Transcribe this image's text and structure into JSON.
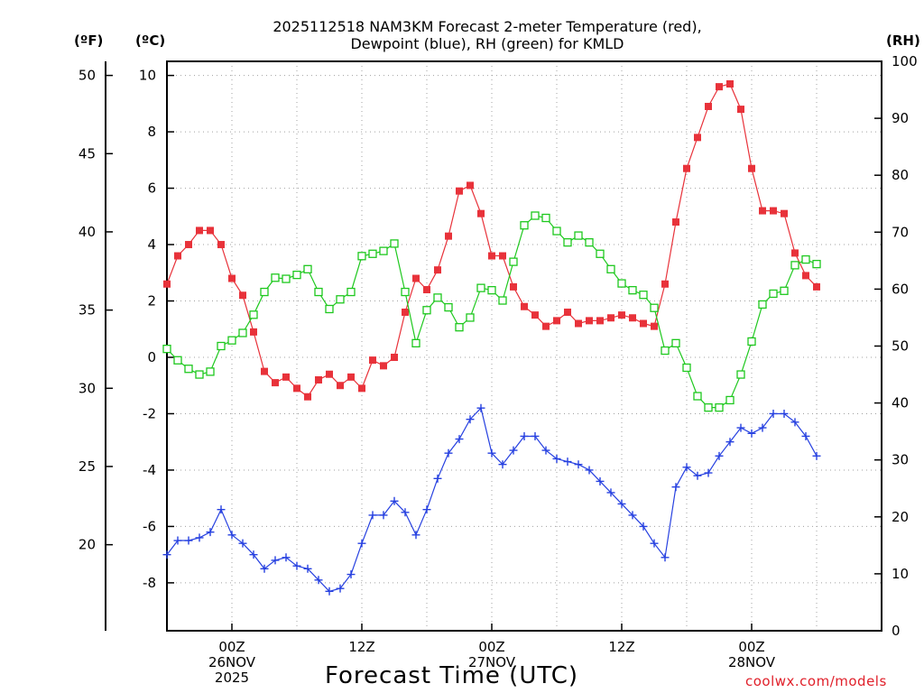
{
  "chart_data": {
    "type": "line",
    "title": "2025112518 NAM3KM Forecast 2-meter Temperature (red),",
    "subtitle": "Dewpoint (blue), RH (green) for KMLD",
    "xlabel": "Forecast Time (UTC)",
    "units": {
      "fahrenheit": "(ºF)",
      "celsius": "(ºC)",
      "rh": "(RH)"
    },
    "credit": "coolwx.com/models",
    "x_hours": [
      -6,
      -5,
      -4,
      -3,
      -2,
      -1,
      0,
      1,
      2,
      3,
      4,
      5,
      6,
      7,
      8,
      9,
      10,
      11,
      12,
      13,
      14,
      15,
      16,
      17,
      18,
      19,
      20,
      21,
      22,
      23,
      24,
      25,
      26,
      27,
      28,
      29,
      30,
      31,
      32,
      33,
      34,
      35,
      36,
      37,
      38,
      39,
      40,
      41,
      42,
      43,
      44,
      45,
      46,
      47,
      48,
      49,
      50,
      51,
      52,
      53,
      54,
      55,
      56,
      57,
      58,
      59,
      60
    ],
    "x_range": [
      -6,
      60
    ],
    "c_range": [
      -9.7,
      10.5
    ],
    "f_range": [
      14.5,
      50.9
    ],
    "rh_range": [
      0,
      100
    ],
    "c_ticks": [
      10,
      8,
      6,
      4,
      2,
      0,
      -2,
      -4,
      -6,
      -8
    ],
    "f_ticks": [
      50,
      45,
      40,
      35,
      30,
      25,
      20
    ],
    "rh_ticks": [
      100,
      90,
      80,
      70,
      60,
      50,
      40,
      30,
      20,
      10,
      0
    ],
    "x_ticks": [
      {
        "hour": 0,
        "labels": [
          "00Z",
          "26NOV",
          "2025"
        ]
      },
      {
        "hour": 12,
        "labels": [
          "12Z"
        ]
      },
      {
        "hour": 24,
        "labels": [
          "00Z",
          "27NOV"
        ]
      },
      {
        "hour": 36,
        "labels": [
          "12Z"
        ]
      },
      {
        "hour": 48,
        "labels": [
          "00Z",
          "28NOV"
        ]
      }
    ],
    "series": [
      {
        "name": "Temperature",
        "color": "#e8323a",
        "marker": "filled-square",
        "axis": "c",
        "values": [
          2.6,
          3.6,
          4.0,
          4.5,
          4.5,
          4.0,
          2.8,
          2.2,
          0.9,
          -0.5,
          -0.9,
          -0.7,
          -1.1,
          -1.4,
          -0.8,
          -0.6,
          -1.0,
          -0.7,
          -1.1,
          -0.1,
          -0.3,
          0.0,
          1.6,
          2.8,
          2.4,
          3.1,
          4.3,
          5.9,
          6.1,
          5.1,
          3.6,
          3.6,
          2.5,
          1.8,
          1.5,
          1.1,
          1.3,
          1.6,
          1.2,
          1.3,
          1.3,
          1.4,
          1.5,
          1.4,
          1.2,
          1.1,
          2.6,
          4.8,
          6.7,
          7.8,
          8.9,
          9.6,
          9.7,
          8.8,
          6.7,
          5.2,
          5.2,
          5.1,
          3.7,
          2.9,
          2.5
        ]
      },
      {
        "name": "Dewpoint",
        "color": "#2640e0",
        "marker": "plus",
        "axis": "c",
        "values": [
          -7.0,
          -6.5,
          -6.5,
          -6.4,
          -6.2,
          -5.4,
          -6.3,
          -6.6,
          -7.0,
          -7.5,
          -7.2,
          -7.1,
          -7.4,
          -7.5,
          -7.9,
          -8.3,
          -8.2,
          -7.7,
          -6.6,
          -5.6,
          -5.6,
          -5.1,
          -5.5,
          -6.3,
          -5.4,
          -4.3,
          -3.4,
          -2.9,
          -2.2,
          -1.8,
          -3.4,
          -3.8,
          -3.3,
          -2.8,
          -2.8,
          -3.3,
          -3.6,
          -3.7,
          -3.8,
          -4.0,
          -4.4,
          -4.8,
          -5.2,
          -5.6,
          -6.0,
          -6.6,
          -7.1,
          -4.6,
          -3.9,
          -4.2,
          -4.1,
          -3.5,
          -3.0,
          -2.5,
          -2.7,
          -2.5,
          -2.0,
          -2.0,
          -2.3,
          -2.8,
          -3.5
        ]
      },
      {
        "name": "RH",
        "color": "#1ec81e",
        "marker": "open-square",
        "axis": "rh",
        "values": [
          49.5,
          47.5,
          46,
          45,
          45.5,
          50,
          51,
          52.3,
          55.5,
          59.5,
          62,
          61.8,
          62.5,
          63.5,
          59.5,
          56.5,
          58.2,
          59.5,
          65.8,
          66.2,
          66.7,
          68,
          59.5,
          50.5,
          56.3,
          58.5,
          56.8,
          53.3,
          55,
          60.2,
          59.8,
          58,
          64.8,
          71.2,
          72.9,
          72.5,
          70.2,
          68.2,
          69.4,
          68.2,
          66.2,
          63.5,
          61,
          59.8,
          59,
          56.7,
          49.2,
          50.5,
          46.2,
          41.2,
          39.2,
          39.2,
          40.5,
          45,
          50.8,
          57.3,
          59.2,
          59.7,
          64.2,
          65.2,
          64.4
        ]
      }
    ]
  }
}
